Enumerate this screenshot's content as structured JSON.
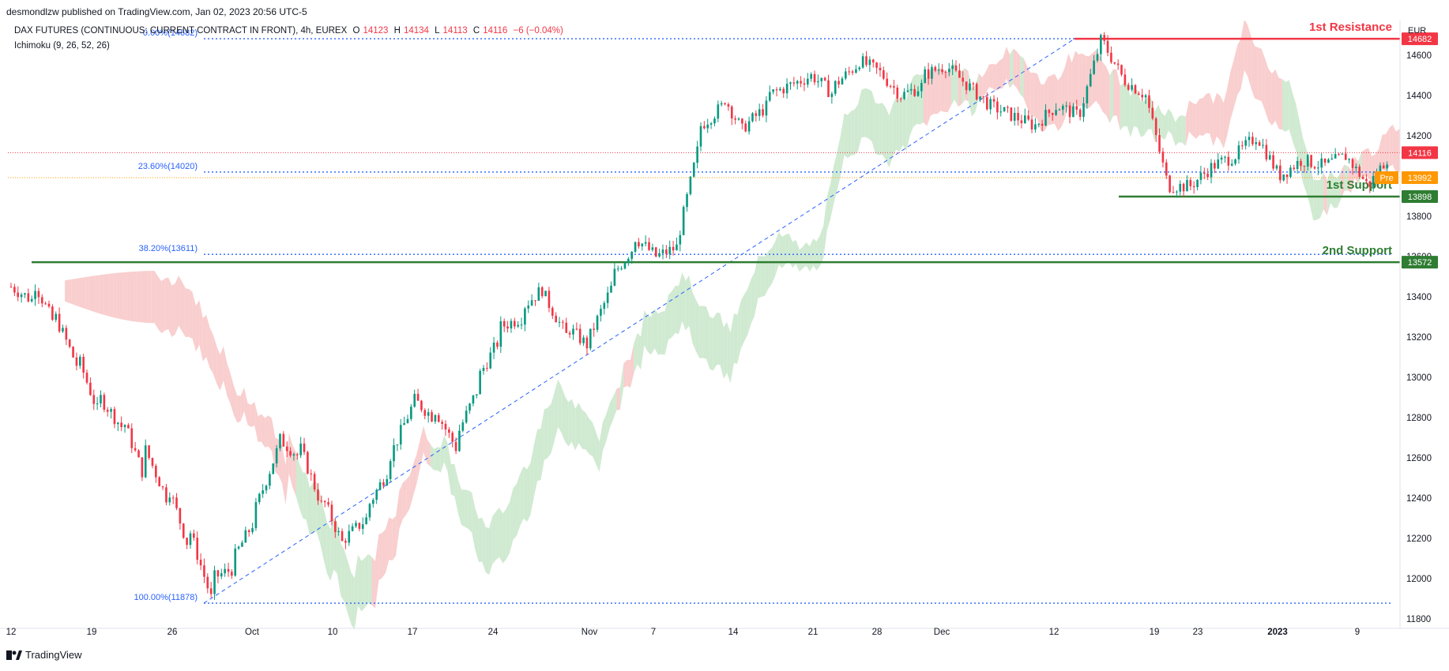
{
  "header": {
    "publisher": "desmondlzw published on TradingView.com, Jan 02, 2023 20:56 UTC-5",
    "symbol": "DAX FUTURES (CONTINUOUS: CURRENT CONTRACT IN FRONT), 4h, EUREX",
    "ohlc": {
      "o_label": "O",
      "o": "14123",
      "h_label": "H",
      "h": "14134",
      "l_label": "L",
      "l": "14113",
      "c_label": "C",
      "c": "14116",
      "change": "−6 (−0.04%)"
    },
    "indicator": "Ichimoku (9, 26, 52, 26)",
    "currency": "EUR"
  },
  "footer": {
    "brand": "TradingView"
  },
  "colors": {
    "up": "#089981",
    "down": "#f23645",
    "cloud_bull": "#c8e6c9",
    "cloud_bear": "#f8c5c5",
    "fib": "#2962ff",
    "resistance": "#f23645",
    "support": "#2e7d32",
    "pre": "#ff9800",
    "axis_text": "#131722",
    "border": "#e0e3eb"
  },
  "chart_data": {
    "type": "candlestick",
    "timeframe": "4h",
    "ylim": [
      11700,
      14800
    ],
    "y_ticks": [
      11800,
      12000,
      12200,
      12400,
      12600,
      12800,
      13000,
      13200,
      13400,
      13600,
      13800,
      14000,
      14200,
      14400,
      14600
    ],
    "y_tick_labels": [
      "11800",
      "12000",
      "12200",
      "12400",
      "12600",
      "12800",
      "13000",
      "13200",
      "13400",
      "13600",
      "13800",
      "14000",
      "14200",
      "14400",
      "14600"
    ],
    "x_tick_labels": [
      "12",
      "19",
      "26",
      "Oct",
      "10",
      "17",
      "24",
      "Nov",
      "7",
      "14",
      "21",
      "28",
      "Dec",
      "12",
      "19",
      "23",
      "2023",
      "9"
    ],
    "x_tick_bold": [
      "2023"
    ],
    "price_path": [
      [
        13450,
        13380
      ],
      [
        13480,
        13250
      ],
      [
        13300,
        13050
      ],
      [
        13100,
        12800
      ],
      [
        12900,
        12750
      ],
      [
        12800,
        12500
      ],
      [
        12650,
        12400
      ],
      [
        12480,
        12150
      ],
      [
        12250,
        11900
      ],
      [
        12000,
        12050
      ],
      [
        12100,
        12300
      ],
      [
        12350,
        12650
      ],
      [
        12700,
        12600
      ],
      [
        12650,
        12350
      ],
      [
        12400,
        12150
      ],
      [
        12200,
        12300
      ],
      [
        12350,
        12550
      ],
      [
        12600,
        12850
      ],
      [
        12900,
        12800
      ],
      [
        12850,
        12650
      ],
      [
        12700,
        12950
      ],
      [
        13000,
        13200
      ],
      [
        13250,
        13300
      ],
      [
        13350,
        13450
      ],
      [
        13400,
        13200
      ],
      [
        13250,
        13150
      ],
      [
        13200,
        13450
      ],
      [
        13500,
        13650
      ],
      [
        13700,
        13600
      ],
      [
        13600,
        13650
      ],
      [
        13700,
        14200
      ],
      [
        14250,
        14350
      ],
      [
        14400,
        14200
      ],
      [
        14250,
        14350
      ],
      [
        14400,
        14450
      ],
      [
        14450,
        14500
      ],
      [
        14500,
        14400
      ],
      [
        14450,
        14550
      ],
      [
        14580,
        14520
      ],
      [
        14520,
        14400
      ],
      [
        14400,
        14450
      ],
      [
        14500,
        14550
      ],
      [
        14550,
        14450
      ],
      [
        14450,
        14350
      ],
      [
        14350,
        14300
      ],
      [
        14300,
        14250
      ],
      [
        14250,
        14350
      ],
      [
        14350,
        14300
      ],
      [
        14300,
        14680
      ],
      [
        14680,
        14480
      ],
      [
        14480,
        14400
      ],
      [
        14400,
        13950
      ],
      [
        13950,
        13950
      ],
      [
        13950,
        14050
      ],
      [
        14050,
        14100
      ],
      [
        14100,
        14200
      ],
      [
        14200,
        14000
      ],
      [
        14000,
        14080
      ],
      [
        14080,
        14050
      ],
      [
        14050,
        14100
      ],
      [
        14100,
        13950
      ],
      [
        13950,
        14116
      ]
    ],
    "fib_levels": [
      {
        "label": "0.00%(14682)",
        "value": 14682
      },
      {
        "label": "23.60%(14020)",
        "value": 14020
      },
      {
        "label": "38.20%(13611)",
        "value": 13611
      },
      {
        "label": "100.00%(11878)",
        "value": 11878
      }
    ],
    "levels": [
      {
        "name": "1st Resistance",
        "value": 14682,
        "badge": "14682",
        "kind": "resistance"
      },
      {
        "name": "1st Support",
        "value": 13898,
        "badge": "13898",
        "kind": "support"
      },
      {
        "name": "2nd Support",
        "value": 13572,
        "badge": "13572",
        "kind": "support"
      }
    ],
    "last_price": {
      "value": 14116,
      "badge": "14116"
    },
    "pre_market": {
      "label": "Pre",
      "value": 13992,
      "badge": "13992"
    },
    "grid": false
  }
}
